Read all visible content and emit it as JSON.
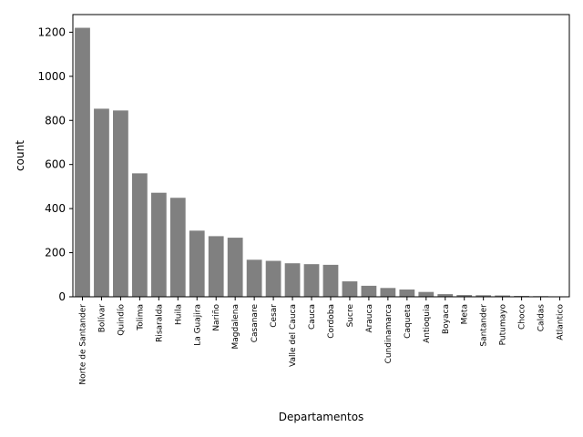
{
  "chart_data": {
    "type": "bar",
    "title": "",
    "xlabel": "Departamentos",
    "ylabel": "count",
    "ylim": [
      0,
      1280
    ],
    "yticks": [
      0,
      200,
      400,
      600,
      800,
      1000,
      1200
    ],
    "grid": false,
    "bar_color": "#808080",
    "categories": [
      "Norte de Santander",
      "Bolívar",
      "Quindío",
      "Tolima",
      "Risaralda",
      "Huila",
      "La Guajira",
      "Nariño",
      "Magdalena",
      "Casanare",
      "Cesar",
      "Valle del Cauca",
      "Cauca",
      "Cordoba",
      "Sucre",
      "Arauca",
      "Cundinamarca",
      "Caqueta",
      "Antioquia",
      "Boyaca",
      "Meta",
      "Santander",
      "Putumayo",
      "Choco",
      "Caldas",
      "Atlantico"
    ],
    "values": [
      1220,
      853,
      845,
      560,
      472,
      449,
      300,
      275,
      268,
      168,
      163,
      152,
      148,
      145,
      70,
      50,
      40,
      33,
      22,
      12,
      8,
      7,
      6,
      4,
      3,
      2
    ]
  }
}
